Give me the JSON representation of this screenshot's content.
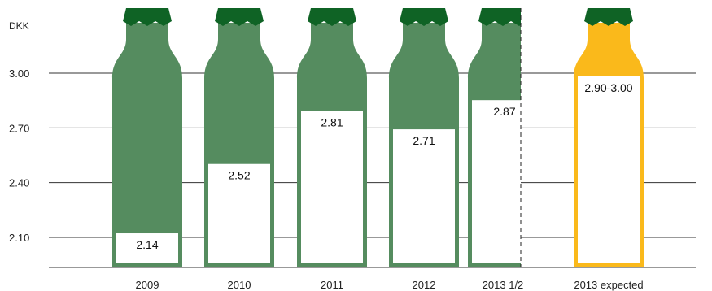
{
  "chart_data": {
    "type": "bar",
    "ylabel": "DKK",
    "ylim": [
      1.92,
      3.3
    ],
    "yticks": [
      2.1,
      2.4,
      2.7,
      3.0
    ],
    "ytick_labels": [
      "2.10",
      "2.40",
      "2.70",
      "3.00"
    ],
    "grid": true,
    "categories": [
      "2009",
      "2010",
      "2011",
      "2012",
      "2013 1/2",
      "2013 expected"
    ],
    "values": [
      2.14,
      2.52,
      2.81,
      2.71,
      2.87,
      2.95
    ],
    "value_labels": [
      "2.14",
      "2.52",
      "2.81",
      "2.71",
      "2.87",
      "2.90-3.00"
    ],
    "range_last": [
      2.9,
      3.0
    ],
    "half_bottle_index": 4,
    "colors": {
      "bottle": "#558c5f",
      "cap": "#0f6325",
      "expected": "#fab91b",
      "grid": "#333333",
      "fill": "#ffffff"
    }
  }
}
